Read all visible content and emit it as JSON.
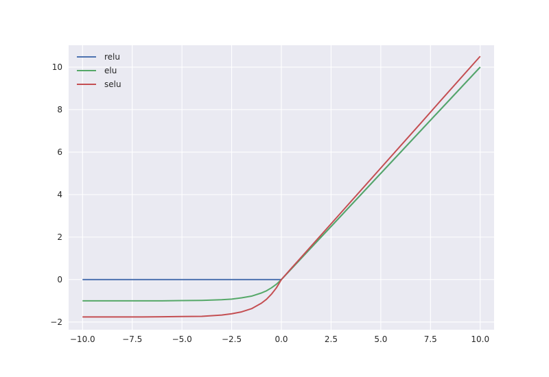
{
  "chart_data": {
    "type": "line",
    "title": "",
    "xlabel": "",
    "ylabel": "",
    "xlim": [
      -10.7,
      10.7
    ],
    "ylim": [
      -2.36,
      11.03
    ],
    "grid": true,
    "legend_position": "top-left",
    "background": "#EAEAF2",
    "x_ticks": [
      -10.0,
      -7.5,
      -5.0,
      -2.5,
      0.0,
      2.5,
      5.0,
      7.5,
      10.0
    ],
    "x_tick_labels": [
      "−10.0",
      "−7.5",
      "−5.0",
      "−2.5",
      "0.0",
      "2.5",
      "5.0",
      "7.5",
      "10.0"
    ],
    "y_ticks": [
      -2,
      0,
      2,
      4,
      6,
      8,
      10
    ],
    "y_tick_labels": [
      "−2",
      "0",
      "2",
      "4",
      "6",
      "8",
      "10"
    ],
    "x": [
      -10,
      -9,
      -8,
      -7,
      -6,
      -5,
      -4,
      -3,
      -2.5,
      -2,
      -1.5,
      -1,
      -0.75,
      -0.5,
      -0.25,
      0,
      0.5,
      1,
      2,
      3,
      4,
      5,
      6,
      7,
      8,
      9,
      10
    ],
    "series": [
      {
        "name": "relu",
        "color": "#4C72B0",
        "values": [
          0,
          0,
          0,
          0,
          0,
          0,
          0,
          0,
          0,
          0,
          0,
          0,
          0,
          0,
          0,
          0,
          0.5,
          1,
          2,
          3,
          4,
          5,
          6,
          7,
          8,
          9,
          10
        ]
      },
      {
        "name": "elu",
        "color": "#55A868",
        "values": [
          -1.0,
          -1.0,
          -1.0,
          -1.0,
          -1.0,
          -0.99,
          -0.98,
          -0.95,
          -0.92,
          -0.86,
          -0.78,
          -0.63,
          -0.53,
          -0.39,
          -0.22,
          0,
          0.5,
          1,
          2,
          3,
          4,
          5,
          6,
          7,
          8,
          9,
          10
        ]
      },
      {
        "name": "selu",
        "color": "#C44E52",
        "values": [
          -1.76,
          -1.76,
          -1.76,
          -1.76,
          -1.75,
          -1.74,
          -1.73,
          -1.67,
          -1.61,
          -1.52,
          -1.37,
          -1.11,
          -0.93,
          -0.69,
          -0.39,
          0,
          0.53,
          1.05,
          2.1,
          3.15,
          4.2,
          5.25,
          6.3,
          7.35,
          8.41,
          9.46,
          10.51
        ]
      }
    ]
  }
}
